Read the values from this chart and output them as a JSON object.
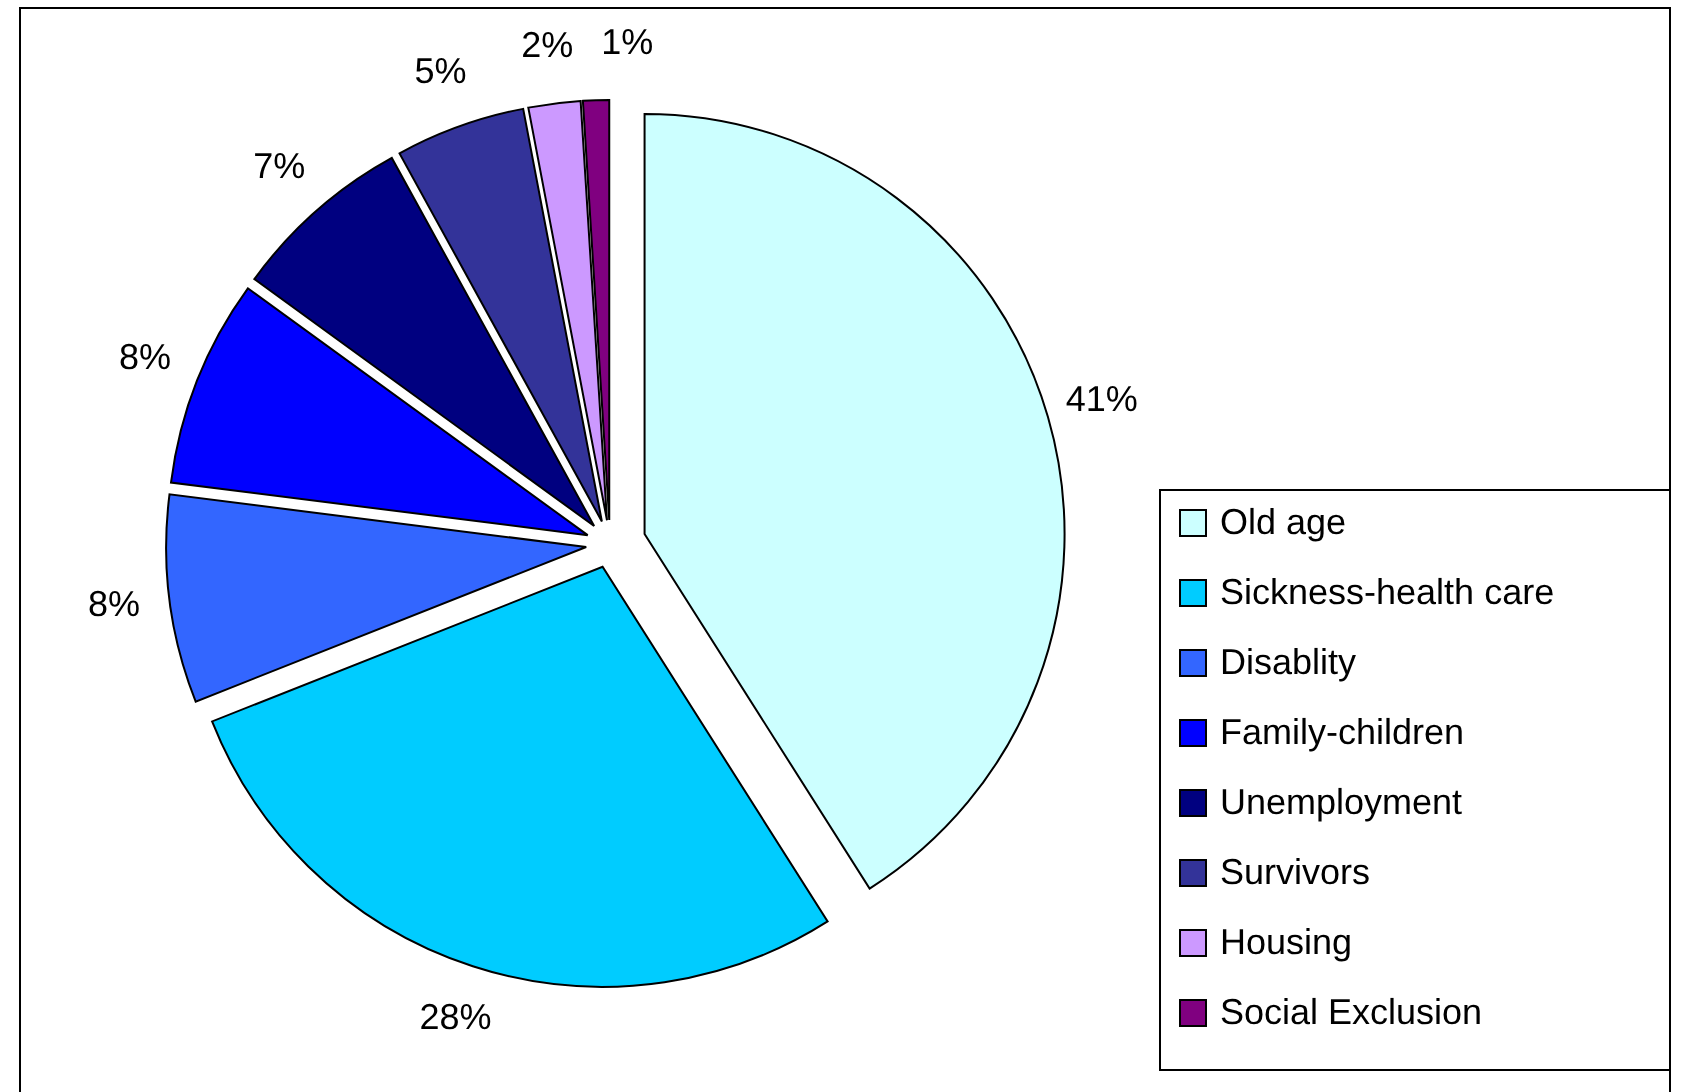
{
  "chart_data": {
    "type": "pie",
    "categories": [
      "Old age",
      "Sickness-health care",
      "Disablity",
      "Family-children",
      "Unemployment",
      "Survivors",
      "Housing",
      "Social Exclusion"
    ],
    "values": [
      41,
      28,
      8,
      8,
      7,
      5,
      2,
      1
    ],
    "colors": [
      "#ccffff",
      "#00ccff",
      "#3366ff",
      "#0000ff",
      "#000080",
      "#333399",
      "#cc99ff",
      "#800080"
    ],
    "value_labels": [
      "41%",
      "28%",
      "8%",
      "8%",
      "7%",
      "5%",
      "2%",
      "1%"
    ],
    "legend": "right"
  }
}
